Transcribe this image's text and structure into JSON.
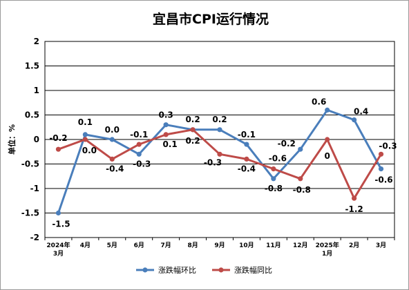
{
  "chart_data": {
    "type": "line",
    "title": "宜昌市CPI运行情况",
    "ylabel": "单位：%",
    "ylim": [
      -2,
      2
    ],
    "yticks": [
      "2",
      "1.5",
      "1",
      "0.5",
      "0",
      "-0.5",
      "-1",
      "-1.5",
      "-2"
    ],
    "categories": [
      [
        "2024年",
        "3月"
      ],
      [
        "4月"
      ],
      [
        "5月"
      ],
      [
        "6月"
      ],
      [
        "7月"
      ],
      [
        "8月"
      ],
      [
        "9月"
      ],
      [
        "10月"
      ],
      [
        "11月"
      ],
      [
        "12月"
      ],
      [
        "2025年",
        "1月"
      ],
      [
        "2月"
      ],
      [
        "3月"
      ]
    ],
    "grid": true,
    "legend_position": "bottom",
    "series": [
      {
        "name": "涨跌幅环比",
        "color": "#4a7ebb",
        "values": [
          -1.5,
          0.1,
          0.0,
          -0.3,
          0.3,
          0.2,
          0.2,
          -0.1,
          -0.8,
          -0.2,
          0.6,
          0.4,
          -0.6
        ],
        "labels": [
          "-1.5",
          "0.1",
          "0.0",
          "-0.3",
          "0.3",
          "0.2",
          "0.2",
          "-0.1",
          "-0.8",
          "-0.2",
          "0.6",
          "0.4",
          "-0.6"
        ]
      },
      {
        "name": "涨跌幅同比",
        "color": "#be4b48",
        "values": [
          -0.2,
          0.0,
          -0.4,
          -0.1,
          0.1,
          0.2,
          -0.3,
          -0.4,
          -0.6,
          -0.8,
          0.0,
          -1.2,
          -0.3
        ],
        "labels": [
          "-0.2",
          "0.0",
          "-0.4",
          "-0.1",
          "0.1",
          "0.2",
          "-0.3",
          "-0.4",
          "-0.6",
          "-0.8",
          "0",
          "-1.2",
          "-0.3"
        ]
      }
    ]
  }
}
